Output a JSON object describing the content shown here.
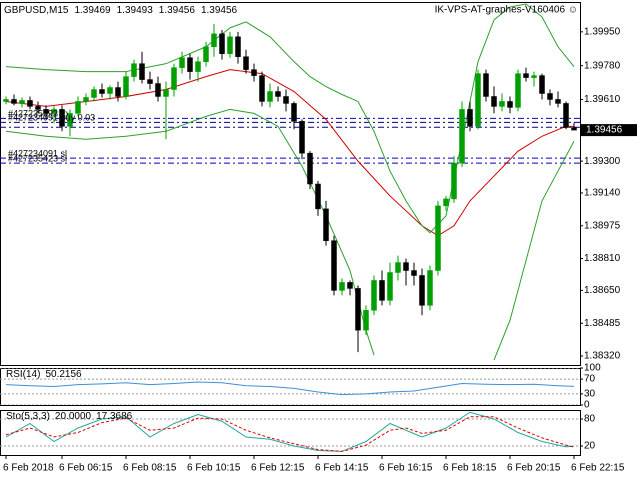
{
  "chart_data": [
    {
      "type": "candlestick",
      "title": "GBPUSD,M15",
      "expert_label": "IK-VPS-AT-graphes-V160406 ☺",
      "up_color": "#00a000",
      "down_color": "#000000",
      "categories": [
        "6 Feb 2018",
        null,
        null,
        null,
        null,
        null,
        null,
        "6 Feb 06:15",
        null,
        null,
        null,
        null,
        null,
        null,
        null,
        "6 Feb 08:15",
        null,
        null,
        null,
        null,
        null,
        null,
        null,
        "6 Feb 10:15",
        null,
        null,
        null,
        null,
        null,
        null,
        null,
        "6 Feb 12:15",
        null,
        null,
        null,
        null,
        null,
        null,
        null,
        "6 Feb 14:15",
        null,
        null,
        null,
        null,
        null,
        null,
        null,
        "6 Feb 16:15",
        null,
        null,
        null,
        null,
        null,
        null,
        null,
        "6 Feb 18:15",
        null,
        null,
        null,
        null,
        null,
        null,
        null,
        "6 Feb 20:15",
        null,
        null,
        null,
        null,
        null,
        null,
        null,
        "6 Feb 22:15"
      ],
      "open": [
        1.396,
        1.3961,
        1.3959,
        1.39605,
        1.39575,
        1.3956,
        1.3954,
        1.3956,
        1.39475,
        1.3954,
        1.396,
        1.3962,
        1.3966,
        1.3964,
        1.3967,
        1.39625,
        1.39725,
        1.3979,
        1.3971,
        1.3969,
        1.39625,
        1.3966,
        1.3977,
        1.3982,
        1.3975,
        1.398,
        1.39875,
        1.3994,
        1.3984,
        1.39925,
        1.39825,
        1.3976,
        1.3973,
        1.396,
        1.3965,
        1.39625,
        1.3959,
        1.395,
        1.3934,
        1.39185,
        1.3906,
        1.389,
        1.3865,
        1.3869,
        1.3866,
        1.3845,
        1.3855,
        1.387,
        1.386,
        1.3874,
        1.3879,
        1.3875,
        1.38725,
        1.38575,
        1.3875,
        1.39075,
        1.3911,
        1.3929,
        1.3956,
        1.39475,
        1.3974,
        1.39625,
        1.39575,
        1.396,
        1.3957,
        1.3974,
        1.3972,
        1.3973,
        1.3964,
        1.3961,
        1.3959,
        1.39469
      ],
      "high": [
        1.39625,
        1.39635,
        1.3962,
        1.39625,
        1.396,
        1.3958,
        1.39575,
        1.3958,
        1.3956,
        1.39625,
        1.3964,
        1.39675,
        1.3969,
        1.3968,
        1.397,
        1.3975,
        1.3981,
        1.3985,
        1.3975,
        1.39725,
        1.397,
        1.3979,
        1.3985,
        1.3984,
        1.39825,
        1.399,
        1.3999,
        1.3996,
        1.3995,
        1.3995,
        1.3986,
        1.3979,
        1.3975,
        1.3969,
        1.39675,
        1.3966,
        1.396,
        1.3951,
        1.3935,
        1.392,
        1.391,
        1.38925,
        1.3871,
        1.387,
        1.38675,
        1.38575,
        1.38725,
        1.3875,
        1.3879,
        1.38825,
        1.3881,
        1.3879,
        1.3876,
        1.38775,
        1.391,
        1.39125,
        1.39325,
        1.396,
        1.396,
        1.3976,
        1.3976,
        1.39675,
        1.3964,
        1.39625,
        1.3976,
        1.3977,
        1.3975,
        1.3974,
        1.3966,
        1.3965,
        1.396,
        1.39493
      ],
      "low": [
        1.39585,
        1.3958,
        1.3957,
        1.3956,
        1.3954,
        1.3951,
        1.3949,
        1.3945,
        1.39425,
        1.39525,
        1.3958,
        1.396,
        1.3962,
        1.3961,
        1.396,
        1.3961,
        1.397,
        1.3969,
        1.3966,
        1.396,
        1.3941,
        1.39625,
        1.3974,
        1.3971,
        1.397,
        1.39775,
        1.39825,
        1.3981,
        1.3982,
        1.3979,
        1.3974,
        1.397,
        1.39575,
        1.3957,
        1.396,
        1.3955,
        1.3946,
        1.3931,
        1.3916,
        1.39025,
        1.38875,
        1.38625,
        1.38625,
        1.38625,
        1.3834,
        1.38425,
        1.38525,
        1.38575,
        1.38575,
        1.387,
        1.38675,
        1.38675,
        1.38525,
        1.3855,
        1.38725,
        1.3905,
        1.3909,
        1.3927,
        1.3945,
        1.3946,
        1.396,
        1.3954,
        1.3955,
        1.3954,
        1.3955,
        1.397,
        1.39675,
        1.3961,
        1.3958,
        1.3957,
        1.3946,
        1.39456
      ],
      "close": [
        1.3961,
        1.3959,
        1.39605,
        1.39575,
        1.3956,
        1.3954,
        1.3956,
        1.39475,
        1.3954,
        1.396,
        1.3962,
        1.3966,
        1.3964,
        1.3967,
        1.39625,
        1.39725,
        1.3979,
        1.3971,
        1.3969,
        1.39625,
        1.3966,
        1.3977,
        1.3982,
        1.3975,
        1.398,
        1.39875,
        1.3994,
        1.3984,
        1.39925,
        1.39825,
        1.3976,
        1.3973,
        1.396,
        1.3965,
        1.39625,
        1.3959,
        1.395,
        1.3934,
        1.39185,
        1.3906,
        1.389,
        1.3865,
        1.3869,
        1.3866,
        1.3845,
        1.3855,
        1.387,
        1.386,
        1.3874,
        1.3879,
        1.3875,
        1.38725,
        1.38575,
        1.3875,
        1.39075,
        1.3911,
        1.3929,
        1.3956,
        1.39475,
        1.3974,
        1.39625,
        1.39575,
        1.396,
        1.3957,
        1.3974,
        1.3972,
        1.3973,
        1.3964,
        1.3961,
        1.3959,
        1.39469,
        1.39456
      ],
      "lines": [
        {
          "color": "#d00000",
          "x": [
            0,
            5,
            10,
            15,
            20,
            25,
            28,
            32,
            36,
            40,
            44,
            48,
            52,
            54,
            56,
            58,
            61,
            64,
            67,
            70,
            71
          ],
          "values": [
            1.396,
            1.39575,
            1.396,
            1.39625,
            1.3966,
            1.39725,
            1.3976,
            1.3974,
            1.3965,
            1.3951,
            1.393,
            1.39125,
            1.38975,
            1.38925,
            1.38975,
            1.391,
            1.39225,
            1.3935,
            1.39425,
            1.39475,
            1.39475
          ]
        },
        {
          "color": "#2ca02c",
          "x": [
            0,
            5,
            10,
            15,
            20,
            25,
            28,
            30,
            33,
            36,
            38,
            40,
            42,
            44,
            46,
            48,
            50,
            52,
            53,
            55,
            57,
            59,
            61,
            63,
            65,
            67,
            69,
            71
          ],
          "values": [
            1.39775,
            1.3976,
            1.3975,
            1.3975,
            1.3979,
            1.39875,
            1.3997,
            1.4,
            1.39925,
            1.398,
            1.39725,
            1.39675,
            1.39635,
            1.396,
            1.3945,
            1.3925,
            1.391,
            1.38975,
            1.3894,
            1.39025,
            1.394,
            1.398,
            1.4001,
            1.40075,
            1.4009,
            1.40025,
            1.39875,
            1.39775
          ]
        },
        {
          "color": "#2ca02c",
          "x": [
            0,
            5,
            10,
            15,
            20,
            25,
            28,
            31,
            34,
            37,
            40,
            43,
            45,
            46,
            47,
            61,
            63,
            65,
            67,
            69,
            71
          ],
          "values": [
            1.3945,
            1.39425,
            1.3941,
            1.39425,
            1.3945,
            1.39525,
            1.3956,
            1.3954,
            1.39475,
            1.39275,
            1.39025,
            1.3875,
            1.3845,
            1.38325,
            null,
            1.383,
            1.385,
            1.388,
            1.391,
            1.3925,
            1.394
          ]
        }
      ],
      "levels": [
        {
          "value": 1.39515,
          "label": "#427235693 tp",
          "color": "#0000c0"
        },
        {
          "value": 1.39495,
          "label": "#427234091 buy 0.03",
          "color": "#000080"
        },
        {
          "value": 1.3947,
          "color": "#000080"
        },
        {
          "value": 1.39315,
          "label": "#427234091 sl",
          "color": "#0000c0"
        },
        {
          "value": 1.3929,
          "label": "#427235423 sl",
          "color": "#0000c0"
        }
      ],
      "ylim": [
        1.38275,
        1.401
      ],
      "yticks": [
        {
          "value": 1.3995,
          "label": "1.39950"
        },
        {
          "value": 1.3978,
          "label": "1.39780"
        },
        {
          "value": 1.3961,
          "label": "1.39610"
        },
        {
          "value": 1.393,
          "label": "1.39300"
        },
        {
          "value": 1.3914,
          "label": "1.39140"
        },
        1.38975,
        {
          "value": 1.3881,
          "label": "1.38810"
        },
        {
          "value": 1.3865,
          "label": "1.38650"
        },
        1.38485,
        {
          "value": 1.3832,
          "label": "1.38320"
        }
      ],
      "grid": false
    },
    {
      "type": "line",
      "title": "RSI(14)",
      "series": [
        {
          "color": "#3c8fd8",
          "x": [
            0,
            3,
            6,
            9,
            12,
            15,
            18,
            21,
            24,
            27,
            30,
            33,
            36,
            39,
            42,
            45,
            48,
            51,
            54,
            57,
            60,
            63,
            66,
            69,
            71
          ],
          "values": [
            55,
            52,
            50,
            55,
            57,
            60,
            55,
            58,
            62,
            60,
            52,
            50,
            45,
            35,
            28,
            30,
            35,
            38,
            48,
            58,
            56,
            55,
            56,
            52,
            50.2156
          ]
        }
      ],
      "ylim": [
        0,
        100
      ],
      "yticks": [
        100,
        70,
        30,
        0
      ],
      "grid": true
    },
    {
      "type": "line",
      "title": "Sto(5,3,3)",
      "series": [
        {
          "color": "#20a8a0",
          "x": [
            0,
            3,
            6,
            9,
            12,
            15,
            18,
            21,
            24,
            27,
            30,
            33,
            36,
            39,
            42,
            45,
            48,
            50,
            52,
            55,
            58,
            61,
            64,
            67,
            70,
            71
          ],
          "values": [
            40,
            70,
            30,
            60,
            80,
            85,
            40,
            70,
            90,
            75,
            40,
            35,
            20,
            10,
            8,
            30,
            70,
            55,
            40,
            60,
            95,
            80,
            50,
            30,
            18,
            20
          ],
          "value_labels": [
            null,
            null,
            null,
            null,
            null,
            null,
            null,
            null,
            null,
            null,
            null,
            null,
            null,
            null,
            null,
            null,
            null,
            null,
            null,
            null,
            null,
            null,
            null,
            null,
            null,
            "20.0000"
          ]
        },
        {
          "color": "#e00000",
          "dashed": true,
          "x": [
            0,
            3,
            6,
            9,
            12,
            15,
            18,
            21,
            24,
            27,
            30,
            33,
            36,
            39,
            42,
            45,
            48,
            50,
            52,
            55,
            58,
            61,
            64,
            67,
            70,
            71
          ],
          "values": [
            45,
            60,
            40,
            50,
            72,
            82,
            55,
            60,
            82,
            80,
            55,
            38,
            25,
            12,
            8,
            22,
            55,
            60,
            48,
            55,
            85,
            85,
            60,
            38,
            22,
            17.3686
          ]
        }
      ],
      "ylim": [
        0,
        100
      ],
      "yticks": [
        80,
        20
      ],
      "grid": true
    }
  ]
}
